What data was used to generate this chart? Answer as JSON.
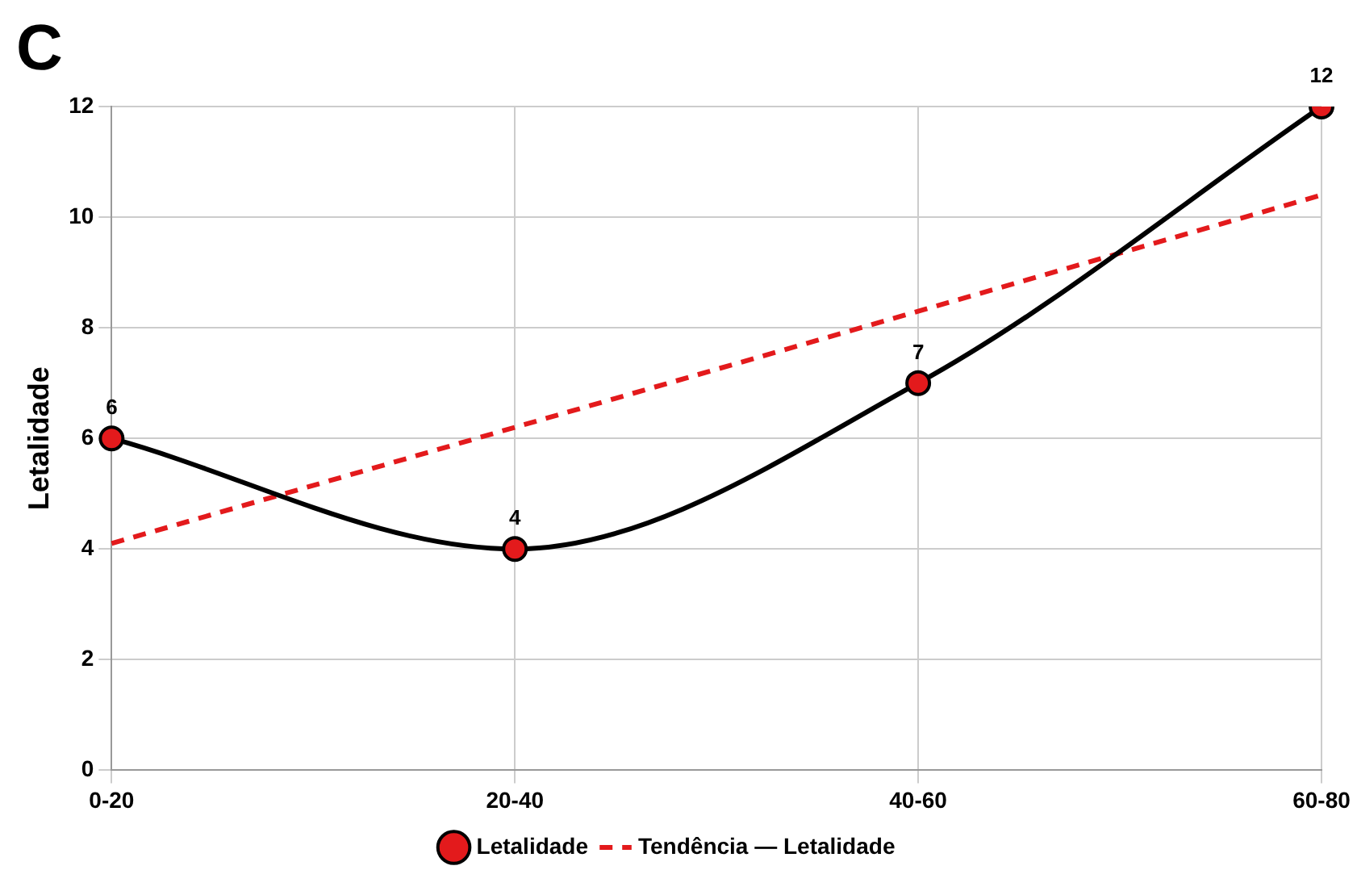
{
  "chart_data": {
    "type": "line",
    "title": "C",
    "ylabel": "Letalidade",
    "categories": [
      "0-20",
      "20-40",
      "40-60",
      "60-80"
    ],
    "series": [
      {
        "name": "Letalidade",
        "color": "#000000",
        "colors": [
          "#e31a1c",
          "#e31a1c",
          "#e31a1c",
          "#e31a1c"
        ],
        "marker": "circle",
        "line_style": "solid",
        "values": [
          6,
          4,
          7,
          12
        ],
        "value_labels": [
          "6",
          "4",
          "7",
          "12"
        ]
      },
      {
        "name": "Tendência — Letalidade",
        "color": "#e31a1c",
        "marker": "none",
        "line_style": "dashed",
        "values": [
          4.1,
          6.2,
          8.3,
          10.4
        ]
      }
    ],
    "ylim": [
      0,
      12
    ],
    "yticks": [
      0,
      2,
      4,
      6,
      8,
      10,
      12
    ],
    "grid": true,
    "legend": "bottom"
  }
}
